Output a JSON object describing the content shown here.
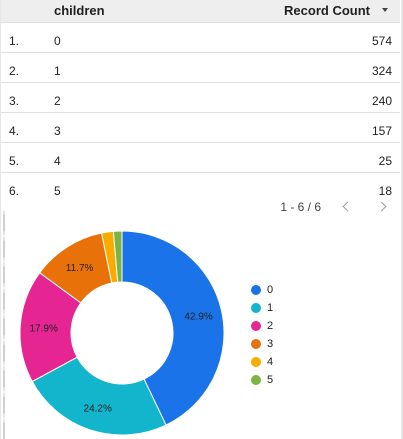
{
  "table": {
    "headers": {
      "category": "children",
      "metric": "Record Count"
    },
    "rows": [
      {
        "index": "1.",
        "category": "0",
        "value": "574"
      },
      {
        "index": "2.",
        "category": "1",
        "value": "324"
      },
      {
        "index": "3.",
        "category": "2",
        "value": "240"
      },
      {
        "index": "4.",
        "category": "3",
        "value": "157"
      },
      {
        "index": "5.",
        "category": "4",
        "value": "25"
      },
      {
        "index": "6.",
        "category": "5",
        "value": "18"
      }
    ],
    "sort_icon": "caret-down-icon"
  },
  "pagination": {
    "label": "1 - 6 / 6",
    "prev_icon": "chevron-left-icon",
    "next_icon": "chevron-right-icon"
  },
  "chart_data": {
    "type": "pie",
    "variant": "donut",
    "categories": [
      "0",
      "1",
      "2",
      "3",
      "4",
      "5"
    ],
    "values": [
      574,
      324,
      240,
      157,
      25,
      18
    ],
    "slice_labels": [
      "42.9%",
      "24.2%",
      "17.9%",
      "11.7%",
      "",
      ""
    ],
    "colors": [
      "#1a73e8",
      "#12b5cb",
      "#e52592",
      "#e8710a",
      "#f9ab00",
      "#7cb342"
    ],
    "legend": "right"
  }
}
